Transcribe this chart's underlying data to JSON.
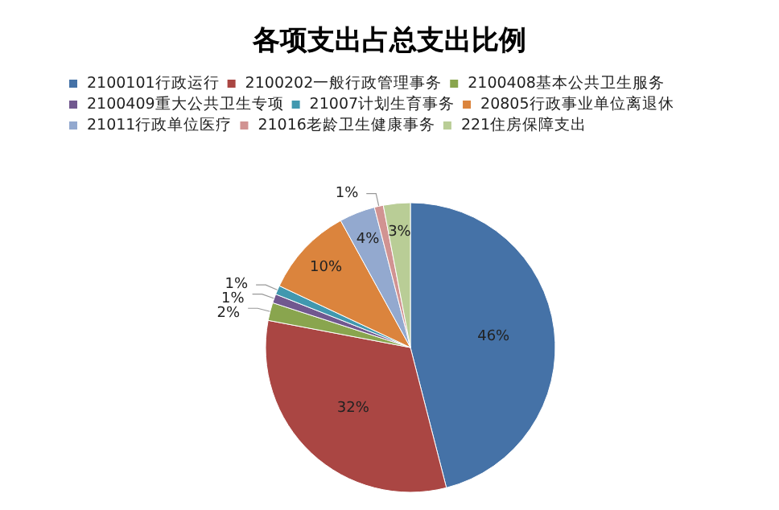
{
  "chart_data": {
    "type": "pie",
    "title": "各项支出占总支出比例",
    "categories": [
      "2100101行政运行",
      "2100202一般行政管理事务",
      "2100408基本公共卫生服务",
      "2100409重大公共卫生专项",
      "21007计划生育事务",
      "20805行政事业单位离退休",
      "21011行政单位医疗",
      "21016老龄卫生健康事务",
      "221住房保障支出"
    ],
    "values": [
      46,
      32,
      2,
      1,
      1,
      10,
      4,
      1,
      3
    ],
    "colors": [
      "#4572a7",
      "#aa4643",
      "#89a54e",
      "#71588f",
      "#4198af",
      "#db843d",
      "#93a9cf",
      "#d19392",
      "#b9cd96"
    ],
    "value_labels": [
      "46%",
      "32%",
      "2%",
      "1%",
      "1%",
      "10%",
      "4%",
      "1%",
      "3%"
    ],
    "legend": "top"
  }
}
